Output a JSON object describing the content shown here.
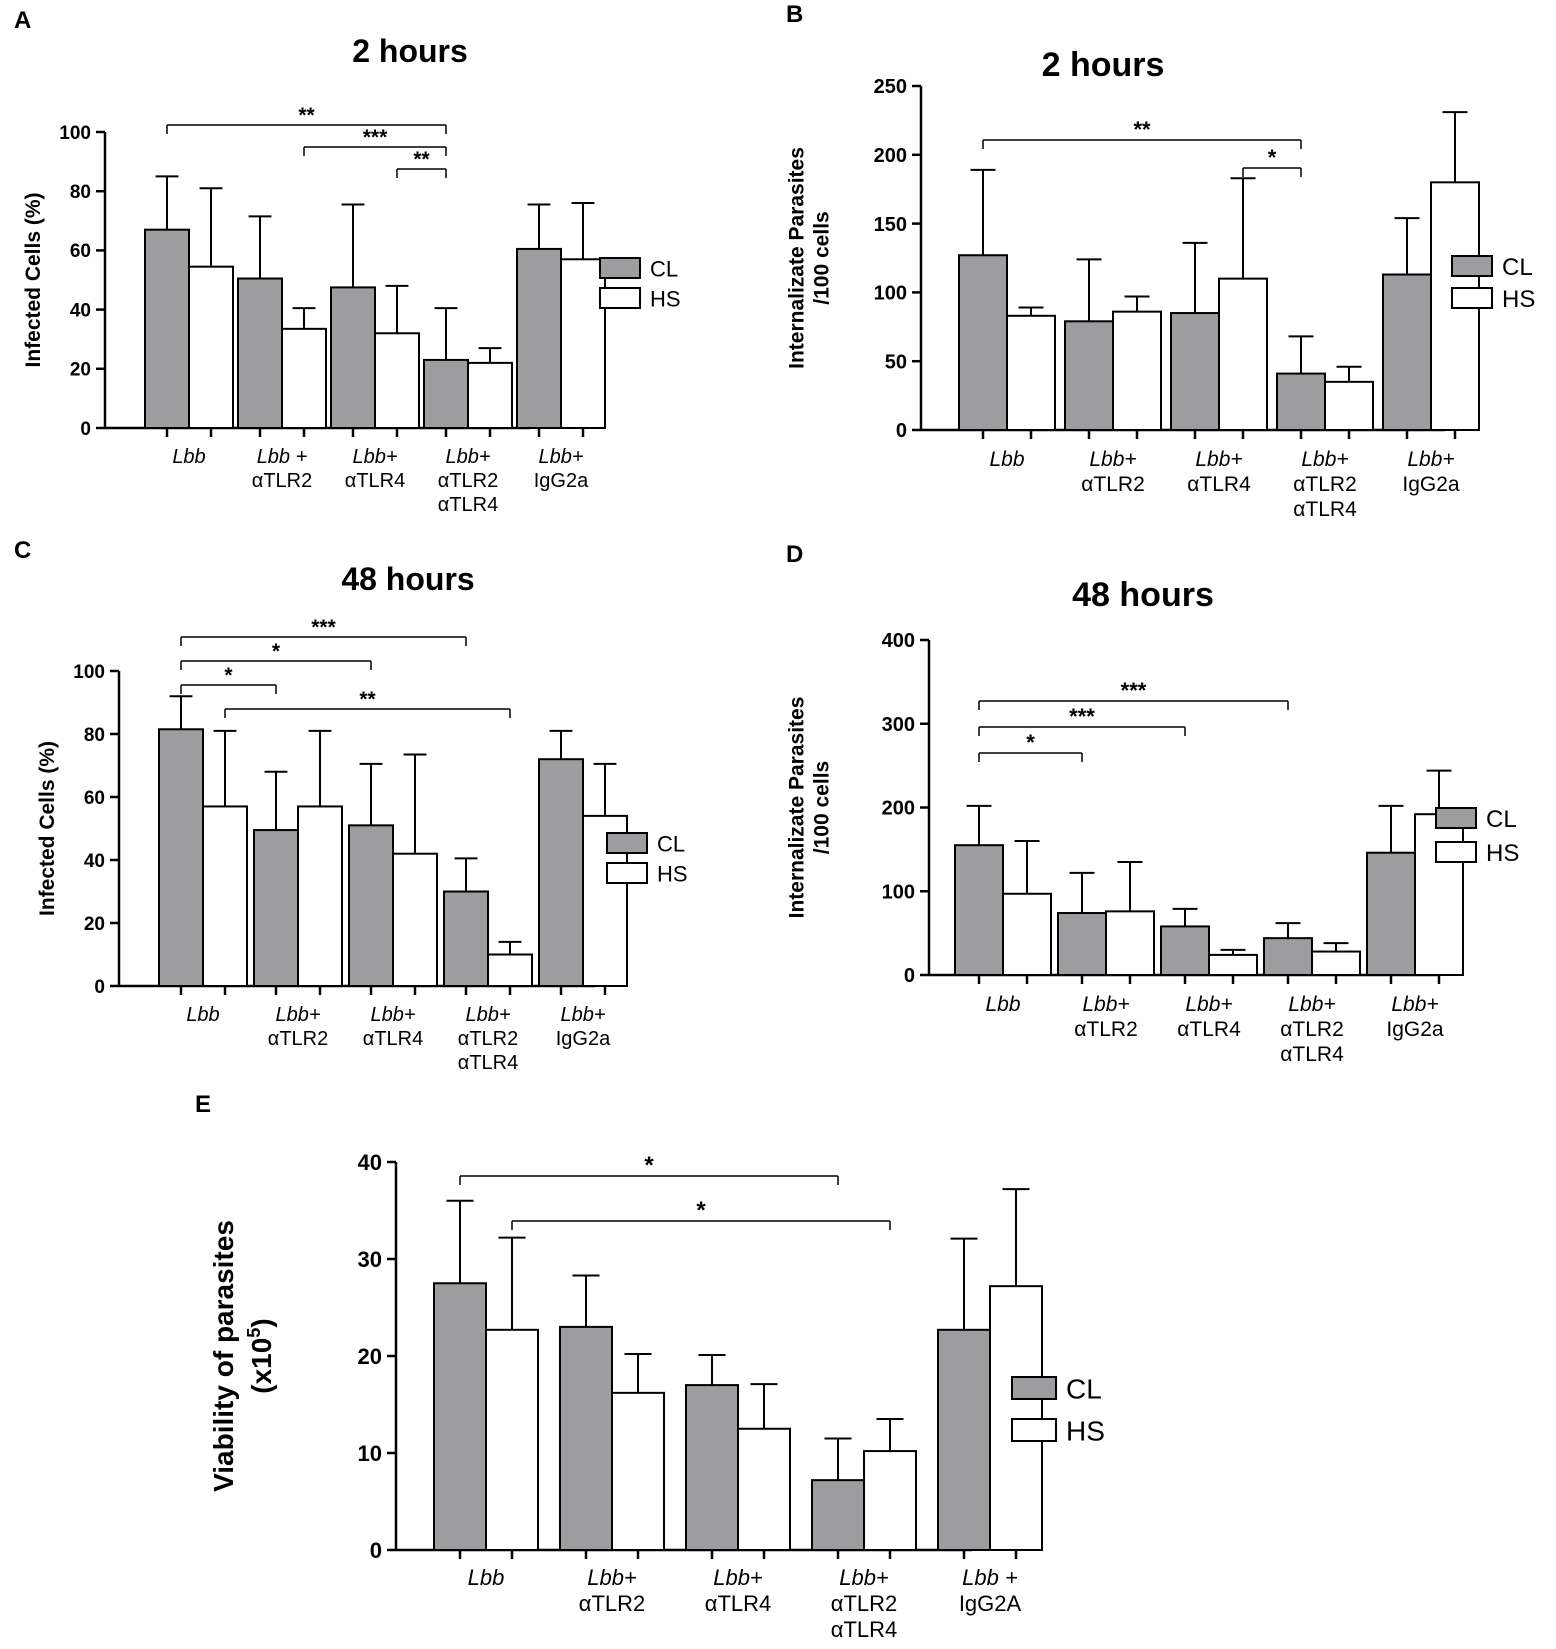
{
  "colors": {
    "cl": "#9d9d9f",
    "hs": "#ffffff",
    "axis": "#000000"
  },
  "chart_data": [
    {
      "type": "bar",
      "panel": "A",
      "title": "2 hours",
      "ylabel": "Infected Cells (%)",
      "ylabel_lines": [
        "Infected Cells (%)"
      ],
      "ylim": [
        0,
        100
      ],
      "yticks": [
        0,
        20,
        40,
        60,
        80,
        100
      ],
      "categories": [
        [
          "Lbb"
        ],
        [
          "Lbb +",
          "αTLR2"
        ],
        [
          "Lbb+",
          "αTLR4"
        ],
        [
          "Lbb+",
          "αTLR2",
          "αTLR4"
        ],
        [
          "Lbb+",
          "IgG2a"
        ]
      ],
      "series": [
        {
          "name": "CL",
          "values": [
            67,
            50.5,
            47.5,
            23,
            60.5
          ],
          "errors": [
            18,
            21,
            28,
            17.5,
            15
          ]
        },
        {
          "name": "HS",
          "values": [
            54.5,
            33.5,
            32,
            22,
            57
          ],
          "errors": [
            26.5,
            7,
            16,
            5,
            19
          ]
        }
      ],
      "legend": [
        "CL",
        "HS"
      ],
      "significance": [
        {
          "from": 0,
          "to": 3,
          "label": "**"
        },
        {
          "from": 1,
          "to": 3,
          "label": "***"
        },
        {
          "from": 2,
          "to": 3,
          "label": "**"
        }
      ]
    },
    {
      "type": "bar",
      "panel": "B",
      "title": "2 hours",
      "ylabel": "Internalizate Parasites /100 cells",
      "ylabel_lines": [
        "Internalizate Parasites",
        "/100 cells"
      ],
      "ylim": [
        0,
        250
      ],
      "yticks": [
        0,
        50,
        100,
        150,
        200,
        250
      ],
      "categories": [
        [
          "Lbb"
        ],
        [
          "Lbb+",
          "αTLR2"
        ],
        [
          "Lbb+",
          "αTLR4"
        ],
        [
          "Lbb+",
          "αTLR2",
          "αTLR4"
        ],
        [
          "Lbb+",
          "IgG2a"
        ]
      ],
      "series": [
        {
          "name": "CL",
          "values": [
            127,
            79,
            85,
            41,
            113
          ],
          "errors": [
            62,
            45,
            51,
            27,
            41
          ]
        },
        {
          "name": "HS",
          "values": [
            83,
            86,
            110,
            35,
            180
          ],
          "errors": [
            6,
            11,
            73,
            11,
            51
          ]
        }
      ],
      "legend": [
        "CL",
        "HS"
      ],
      "significance": [
        {
          "from": 0,
          "to": 3,
          "label": "**"
        },
        {
          "from": 2,
          "to": 3,
          "label": "*"
        }
      ]
    },
    {
      "type": "bar",
      "panel": "C",
      "title": "48 hours",
      "ylabel": "Infected Cells (%)",
      "ylabel_lines": [
        "Infected Cells (%)"
      ],
      "ylim": [
        0,
        100
      ],
      "yticks": [
        0,
        20,
        40,
        60,
        80,
        100
      ],
      "categories": [
        [
          "Lbb"
        ],
        [
          "Lbb+",
          "αTLR2"
        ],
        [
          "Lbb+",
          "αTLR4"
        ],
        [
          "Lbb+",
          "αTLR2",
          "αTLR4"
        ],
        [
          "Lbb+",
          "IgG2a"
        ]
      ],
      "series": [
        {
          "name": "CL",
          "values": [
            81.5,
            49.5,
            51,
            30,
            72
          ],
          "errors": [
            10.5,
            18.5,
            19.5,
            10.5,
            9
          ]
        },
        {
          "name": "HS",
          "values": [
            57,
            57,
            42,
            10,
            54
          ],
          "errors": [
            24,
            24,
            31.5,
            4,
            16.5
          ]
        }
      ],
      "legend": [
        "CL",
        "HS"
      ],
      "significance": [
        {
          "from": 0,
          "to": 3,
          "label": "***"
        },
        {
          "from": 0,
          "to": 2,
          "label": "*"
        },
        {
          "from": 0,
          "to": 1,
          "label": "*"
        },
        {
          "from": 0,
          "to": 3,
          "label": "**",
          "right_end": true
        }
      ]
    },
    {
      "type": "bar",
      "panel": "D",
      "title": "48 hours",
      "ylabel": "Internalizate Parasites /100 cells",
      "ylabel_lines": [
        "Internalizate Parasites",
        "/100 cells"
      ],
      "ylim": [
        0,
        400
      ],
      "yticks": [
        0,
        100,
        200,
        300,
        400
      ],
      "categories": [
        [
          "Lbb"
        ],
        [
          "Lbb+",
          "αTLR2"
        ],
        [
          "Lbb+",
          "αTLR4"
        ],
        [
          "Lbb+",
          "αTLR2",
          "αTLR4"
        ],
        [
          "Lbb+",
          "IgG2a"
        ]
      ],
      "series": [
        {
          "name": "CL",
          "values": [
            155,
            74,
            58,
            44,
            146
          ],
          "errors": [
            47,
            48,
            21,
            18,
            56
          ]
        },
        {
          "name": "HS",
          "values": [
            97,
            76,
            24,
            28,
            192
          ],
          "errors": [
            63,
            59,
            6,
            10,
            52
          ]
        }
      ],
      "legend": [
        "CL",
        "HS"
      ],
      "significance": [
        {
          "from": 0,
          "to": 3,
          "label": "***"
        },
        {
          "from": 0,
          "to": 2,
          "label": "***"
        },
        {
          "from": 0,
          "to": 1,
          "label": "*"
        }
      ]
    },
    {
      "type": "bar",
      "panel": "E",
      "title": "",
      "ylabel": "Viability of parasites (x10^5)",
      "ylabel_lines": [
        "Viability of parasites"
      ],
      "ylabel_base": "(x10",
      "ylabel_sup": "5",
      "ylabel_close": ")",
      "ylim": [
        0,
        40
      ],
      "yticks": [
        0,
        10,
        20,
        30,
        40
      ],
      "categories": [
        [
          "Lbb"
        ],
        [
          "Lbb+",
          "αTLR2"
        ],
        [
          "Lbb+",
          "αTLR4"
        ],
        [
          "Lbb+",
          "αTLR2",
          "αTLR4"
        ],
        [
          "Lbb +",
          "IgG2A"
        ]
      ],
      "series": [
        {
          "name": "CL",
          "values": [
            27.5,
            23,
            17,
            7.2,
            22.7
          ],
          "errors": [
            8.5,
            5.3,
            3.1,
            4.3,
            9.4
          ]
        },
        {
          "name": "HS",
          "values": [
            22.7,
            16.2,
            12.5,
            10.2,
            27.2
          ],
          "errors": [
            9.5,
            4,
            4.6,
            3.3,
            10
          ]
        }
      ],
      "legend": [
        "CL",
        "HS"
      ],
      "significance": [
        {
          "from": 0,
          "to": 3,
          "label": "*"
        },
        {
          "from": 0,
          "to": 3,
          "label": "*",
          "shifted": true
        }
      ]
    }
  ]
}
